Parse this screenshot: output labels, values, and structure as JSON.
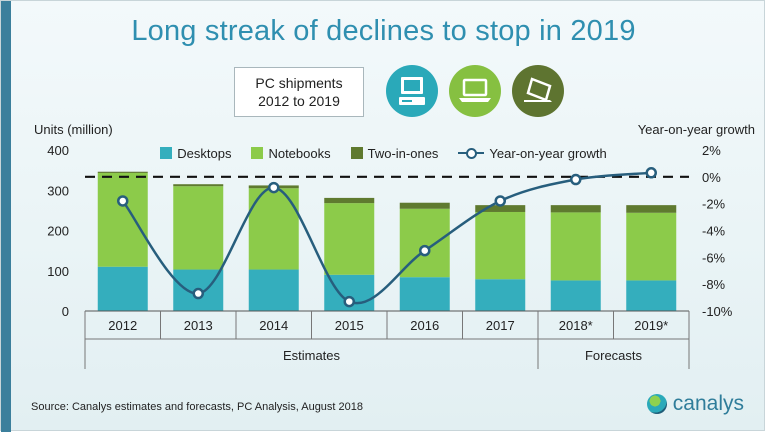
{
  "title": "Long streak of declines to stop in 2019",
  "subtitle_line1": "PC shipments",
  "subtitle_line2": "2012 to 2019",
  "icons": [
    "desktop-icon",
    "notebook-icon",
    "two-in-one-icon"
  ],
  "source": "Source: Canalys estimates and forecasts, PC Analysis, August 2018",
  "brand": "canalys",
  "colors": {
    "desktops": "#34aebd",
    "notebooks": "#8ccb4a",
    "two_in_ones": "#5f7a2f",
    "growth": "#275e7d",
    "title": "#2f8fb0"
  },
  "chart_data": {
    "type": "bar",
    "stacked": true,
    "categories": [
      "2012",
      "2013",
      "2014",
      "2015",
      "2016",
      "2017",
      "2018*",
      "2019*"
    ],
    "series": [
      {
        "name": "Desktops",
        "axis": "left",
        "values": [
          110,
          103,
          103,
          90,
          84,
          79,
          76,
          76
        ]
      },
      {
        "name": "Notebooks",
        "axis": "left",
        "values": [
          233,
          207,
          202,
          178,
          170,
          167,
          169,
          168
        ]
      },
      {
        "name": "Two-in-ones",
        "axis": "left",
        "values": [
          3,
          5,
          7,
          13,
          15,
          17,
          18,
          19
        ]
      },
      {
        "name": "Year-on-year growth",
        "type": "line",
        "axis": "right",
        "values": [
          -1.8,
          -8.7,
          -0.8,
          -9.3,
          -5.5,
          -1.8,
          -0.2,
          0.3
        ]
      }
    ],
    "reference_line": {
      "axis": "right",
      "value": 0,
      "style": "dashed"
    },
    "ylabel": "Units (million)",
    "ylim": [
      0,
      400
    ],
    "yticks": [
      "0",
      "100",
      "200",
      "300",
      "400"
    ],
    "y2label": "Year-on-year growth",
    "y2lim": [
      -10,
      2
    ],
    "y2ticks": [
      "-10%",
      "-8%",
      "-6%",
      "-4%",
      "-2%",
      "0%",
      "2%"
    ],
    "group_labels": [
      {
        "label": "Estimates",
        "from": 0,
        "to": 5
      },
      {
        "label": "Forecasts",
        "from": 6,
        "to": 7
      }
    ]
  }
}
